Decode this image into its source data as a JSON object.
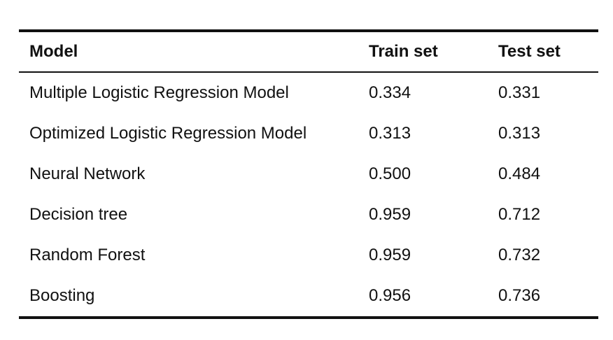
{
  "table": {
    "headers": [
      "Model",
      "Train set",
      "Test set"
    ],
    "rows": [
      [
        "Multiple Logistic Regression Model",
        "0.334",
        "0.331"
      ],
      [
        "Optimized Logistic Regression Model",
        "0.313",
        "0.313"
      ],
      [
        "Neural Network",
        "0.500",
        "0.484"
      ],
      [
        "Decision tree",
        "0.959",
        "0.712"
      ],
      [
        "Random Forest",
        "0.959",
        "0.732"
      ],
      [
        "Boosting",
        "0.956",
        "0.736"
      ]
    ]
  }
}
